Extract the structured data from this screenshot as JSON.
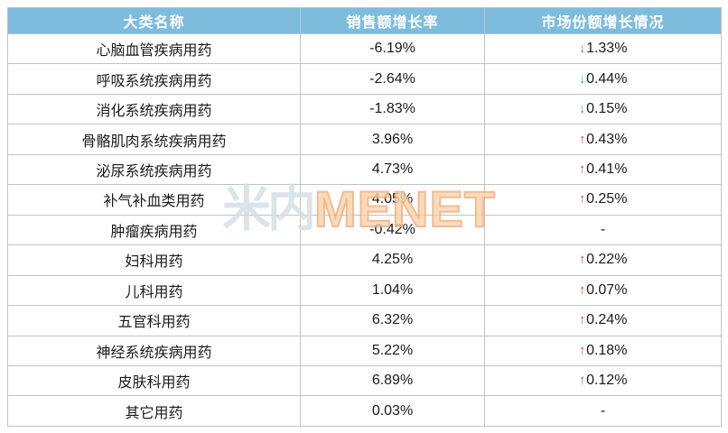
{
  "chart_data": {
    "type": "table",
    "columns": [
      "大类名称",
      "销售额增长率",
      "市场份额增长情况"
    ],
    "rows": [
      {
        "category": "心脑血管疾病用药",
        "sales_growth": "-6.19%",
        "share_change": "1.33%",
        "share_direction": "down"
      },
      {
        "category": "呼吸系统疾病用药",
        "sales_growth": "-2.64%",
        "share_change": "0.44%",
        "share_direction": "down"
      },
      {
        "category": "消化系统疾病用药",
        "sales_growth": "-1.83%",
        "share_change": "0.15%",
        "share_direction": "down"
      },
      {
        "category": "骨骼肌肉系统疾病用药",
        "sales_growth": "3.96%",
        "share_change": "0.43%",
        "share_direction": "up"
      },
      {
        "category": "泌尿系统疾病用药",
        "sales_growth": "4.73%",
        "share_change": "0.41%",
        "share_direction": "up"
      },
      {
        "category": "补气补血类用药",
        "sales_growth": "4.05%",
        "share_change": "0.25%",
        "share_direction": "up"
      },
      {
        "category": "肿瘤疾病用药",
        "sales_growth": "-0.42%",
        "share_change": "-",
        "share_direction": "none"
      },
      {
        "category": "妇科用药",
        "sales_growth": "4.25%",
        "share_change": "0.22%",
        "share_direction": "up"
      },
      {
        "category": "儿科用药",
        "sales_growth": "1.04%",
        "share_change": "0.07%",
        "share_direction": "up"
      },
      {
        "category": "五官科用药",
        "sales_growth": "6.32%",
        "share_change": "0.24%",
        "share_direction": "up"
      },
      {
        "category": "神经系统疾病用药",
        "sales_growth": "5.22%",
        "share_change": "0.18%",
        "share_direction": "up"
      },
      {
        "category": "皮肤科用药",
        "sales_growth": "6.89%",
        "share_change": "0.12%",
        "share_direction": "up"
      },
      {
        "category": "其它用药",
        "sales_growth": "0.03%",
        "share_change": "-",
        "share_direction": "none"
      }
    ]
  },
  "icons": {
    "up_arrow": "↑",
    "down_arrow": "↓"
  },
  "watermark": {
    "cn_text": "米内",
    "en_text": "MENET"
  },
  "colors": {
    "header_bg": "#7DBCDD",
    "header_text": "#FFFFFF",
    "border": "#C2C2C2",
    "body_text": "#1A1A1A",
    "up_arrow": "#E2231A",
    "down_arrow": "#00A65E",
    "watermark_cn": "#D3DEE3",
    "watermark_en_fill": "#F8D3AC",
    "watermark_en_stroke": "#F0AC74"
  }
}
